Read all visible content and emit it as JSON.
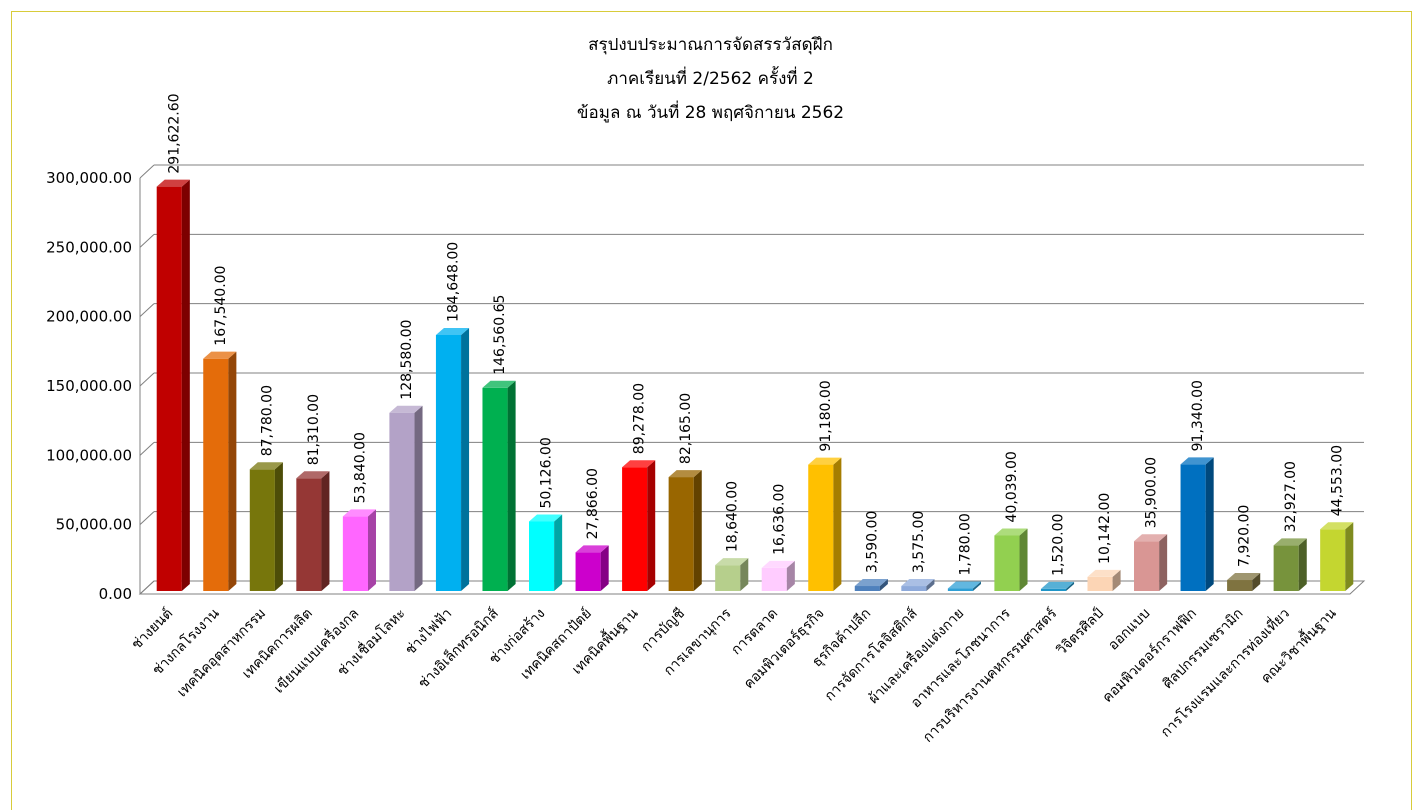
{
  "chart_data": {
    "type": "bar",
    "title": "สรุปงบประมาณการจัดสรรวัสดุฝึก",
    "subtitle_lines": [
      "ภาคเรียนที่ 2/2562 ครั้งที่ 2",
      "ข้อมูล ณ วันที่  28  พฤศจิกายน  2562"
    ],
    "xlabel": "",
    "ylabel": "",
    "ylim": [
      0,
      300000
    ],
    "yticks": [
      0,
      50000,
      100000,
      150000,
      200000,
      250000,
      300000
    ],
    "ytick_labels": [
      "0.00",
      "50,000.00",
      "100,000.00",
      "150,000.00",
      "200,000.00",
      "250,000.00",
      "300,000.00"
    ],
    "grid": true,
    "legend": "none",
    "categories": [
      "ช่างยนต์",
      "ช่างกลโรงงาน",
      "เทคนิคอุตสาหกรรม",
      "เทคนิคการผลิต",
      "เขียนแบบเครื่องกล",
      "ช่างเชื่อมโลหะ",
      "ช่างไฟฟ้า",
      "ช่างอิเล็กทรอนิกส์",
      "ช่างก่อสร้าง",
      "เทคนิคสถาปัตย์",
      "เทคนิคพื้นฐาน",
      "การบัญชี",
      "การเลขานุการ",
      "การตลาด",
      "คอมพิวเตอร์ธุรกิจ",
      "ธุรกิจค้าปลีก",
      "การจัดการโลจิสติกส์",
      "ผ้าและเครื่องแต่งกาย",
      "อาหารและโภชนาการ",
      "การบริหารงานคหกรรมศาสตร์",
      "วิจิตรศิลป์",
      "ออกแบบ",
      "คอมพิวเตอร์กราฟฟิก",
      "ศิลปกรรมเซรามิก",
      "การโรงแรมและการท่องเที่ยว",
      "คณะวิชาพื้นฐาน"
    ],
    "values": [
      291622.6,
      167540.0,
      87780.0,
      81310.0,
      53840.0,
      128580.0,
      184648.0,
      146560.65,
      50126.0,
      27866.0,
      89278.0,
      82165.0,
      18640.0,
      16636.0,
      91180.0,
      3590.0,
      3575.0,
      1780.0,
      40039.0,
      1520.0,
      10142.0,
      35900.0,
      91340.0,
      7920.0,
      32927.0,
      44553.0
    ],
    "data_labels": [
      "291,622.60",
      "167,540.00",
      "87,780.00",
      "81,310.00",
      "53,840.00",
      "128,580.00",
      "184,648.00",
      "146,560.65",
      "50,126.00",
      "27,866.00",
      "89,278.00",
      "82,165.00",
      "18,640.00",
      "16,636.00",
      "91,180.00",
      "3,590.00",
      "3,575.00",
      "1,780.00",
      "40,039.00",
      "1,520.00",
      "10,142.00",
      "35,900.00",
      "91,340.00",
      "7,920.00",
      "32,927.00",
      "44,553.00"
    ],
    "colors": [
      "#c00000",
      "#e46c0a",
      "#77760c",
      "#953735",
      "#ff66ff",
      "#b3a2c7",
      "#00b0f0",
      "#00b050",
      "#00ffff",
      "#cc00cc",
      "#ff0000",
      "#996600",
      "#b6cf8c",
      "#ffccff",
      "#ffc000",
      "#4f81bd",
      "#8eaadb",
      "#2e9fd5",
      "#92d050",
      "#1f95c8",
      "#fcd5b5",
      "#d99694",
      "#0070c0",
      "#7f7340",
      "#77933c",
      "#c4d630"
    ]
  }
}
